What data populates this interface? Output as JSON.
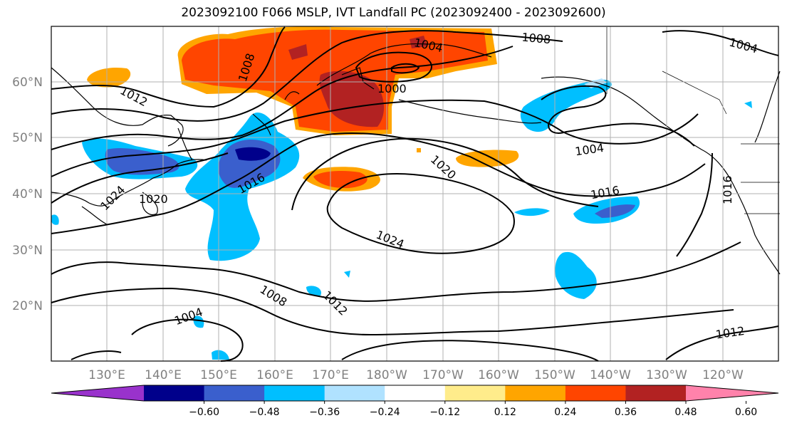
{
  "title": "2023092100 F066 MSLP, IVT Landfall PC (2023092400 - 2023092600)",
  "lat_labels": [
    "60°N",
    "50°N",
    "40°N",
    "30°N",
    "20°N"
  ],
  "lon_labels": [
    "130°E",
    "140°E",
    "150°E",
    "160°E",
    "170°E",
    "180°W",
    "170°W",
    "160°W",
    "150°W",
    "140°W",
    "130°W",
    "120°W"
  ],
  "contour_labels": [
    "1004",
    "1008",
    "1000",
    "1004",
    "1012",
    "1004",
    "1008",
    "1020",
    "1016",
    "1016",
    "1024",
    "1020",
    "1024",
    "1016",
    "1008",
    "1012",
    "1004",
    "1012"
  ],
  "colorbar": {
    "ticks": [
      "−0.60",
      "−0.48",
      "−0.36",
      "−0.24",
      "−0.12",
      "0.12",
      "0.24",
      "0.36",
      "0.48",
      "0.60"
    ],
    "colors": [
      "#9932cc",
      "#00008b",
      "#3a5fcd",
      "#00bfff",
      "#b0e2ff",
      "#ffffff",
      "#ffec8b",
      "#ffa500",
      "#ff4500",
      "#b22222",
      "#ff82ab"
    ]
  }
}
